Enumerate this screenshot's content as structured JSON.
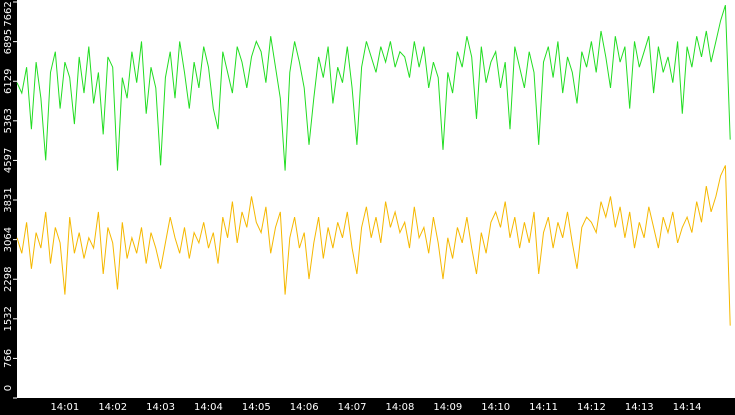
{
  "chart_data": {
    "type": "line",
    "categories": [
      null,
      null,
      null,
      null,
      null,
      null,
      null,
      null,
      null,
      null,
      "14:01",
      null,
      null,
      null,
      null,
      null,
      null,
      null,
      null,
      null,
      "14:02",
      null,
      null,
      null,
      null,
      null,
      null,
      null,
      null,
      null,
      "14:03",
      null,
      null,
      null,
      null,
      null,
      null,
      null,
      null,
      null,
      "14:04",
      null,
      null,
      null,
      null,
      null,
      null,
      null,
      null,
      null,
      "14:05",
      null,
      null,
      null,
      null,
      null,
      null,
      null,
      null,
      null,
      "14:06",
      null,
      null,
      null,
      null,
      null,
      null,
      null,
      null,
      null,
      "14:07",
      null,
      null,
      null,
      null,
      null,
      null,
      null,
      null,
      null,
      "14:08",
      null,
      null,
      null,
      null,
      null,
      null,
      null,
      null,
      null,
      "14:09",
      null,
      null,
      null,
      null,
      null,
      null,
      null,
      null,
      null,
      "14:10",
      null,
      null,
      null,
      null,
      null,
      null,
      null,
      null,
      null,
      "14:11",
      null,
      null,
      null,
      null,
      null,
      null,
      null,
      null,
      null,
      "14:12",
      null,
      null,
      null,
      null,
      null,
      null,
      null,
      null,
      null,
      "14:13",
      null,
      null,
      null,
      null,
      null,
      null,
      null,
      null,
      null,
      "14:14",
      null,
      null,
      null,
      null,
      null,
      null,
      null,
      null,
      null
    ],
    "series": [
      {
        "color": "#22dd22",
        "values": [
          6100,
          5900,
          6400,
          5200,
          6500,
          5800,
          4600,
          6300,
          6700,
          5600,
          6500,
          6200,
          5300,
          6600,
          5900,
          6800,
          5700,
          6300,
          5100,
          6600,
          6400,
          4400,
          6200,
          5800,
          6700,
          6100,
          6900,
          5500,
          6400,
          6000,
          4500,
          6200,
          6700,
          5800,
          6900,
          6300,
          5600,
          6500,
          6000,
          6800,
          6400,
          5600,
          5200,
          6700,
          6300,
          5900,
          6800,
          6500,
          6000,
          6600,
          6900,
          6700,
          6100,
          7000,
          6400,
          5800,
          4400,
          6300,
          6900,
          6500,
          6000,
          4900,
          5800,
          6600,
          6200,
          6800,
          5700,
          6400,
          6100,
          6800,
          6000,
          4900,
          6400,
          6900,
          6600,
          6300,
          6800,
          6500,
          6900,
          6400,
          6700,
          6600,
          6200,
          6900,
          6400,
          6800,
          6000,
          6500,
          6200,
          4800,
          6300,
          5900,
          6700,
          6400,
          7000,
          6600,
          5400,
          6800,
          6100,
          6500,
          6700,
          6000,
          6500,
          5200,
          6800,
          6400,
          6000,
          6700,
          6300,
          4900,
          6500,
          6800,
          6200,
          6900,
          5900,
          6600,
          6300,
          5700,
          6700,
          6400,
          6900,
          6300,
          7100,
          6600,
          6000,
          7000,
          6500,
          6800,
          5600,
          6900,
          6400,
          6700,
          7000,
          5900,
          6800,
          6300,
          6600,
          6100,
          6900,
          5500,
          6800,
          6400,
          7000,
          6600,
          7100,
          6500,
          6900,
          7300,
          7600,
          5000
        ]
      },
      {
        "color": "#f5b800",
        "values": [
          3100,
          2800,
          3400,
          2500,
          3200,
          2900,
          3600,
          2600,
          3300,
          3000,
          2000,
          3500,
          2800,
          3200,
          2700,
          3100,
          2900,
          3600,
          2400,
          3300,
          3000,
          2100,
          3400,
          2700,
          3100,
          2800,
          3300,
          2600,
          3200,
          2900,
          2500,
          3000,
          3500,
          3100,
          2800,
          3300,
          2700,
          3200,
          3000,
          3400,
          2900,
          3200,
          2600,
          3500,
          3100,
          3800,
          3000,
          3600,
          3300,
          3900,
          3400,
          3200,
          3700,
          2800,
          3300,
          3600,
          2000,
          3100,
          3500,
          2900,
          3200,
          2300,
          3000,
          3500,
          2700,
          3300,
          2900,
          3400,
          3100,
          3600,
          2900,
          2400,
          3300,
          3700,
          3100,
          3500,
          3000,
          3800,
          3300,
          3600,
          3200,
          3400,
          2900,
          3700,
          3100,
          3300,
          2800,
          3500,
          3000,
          2300,
          3100,
          2700,
          3300,
          3000,
          3500,
          2900,
          2400,
          3200,
          2800,
          3400,
          3600,
          3300,
          3800,
          3100,
          3500,
          2900,
          3400,
          3000,
          3600,
          2400,
          3200,
          3500,
          2900,
          3400,
          3100,
          3600,
          3000,
          2500,
          3300,
          3500,
          3400,
          3200,
          3800,
          3500,
          3900,
          3300,
          3700,
          3100,
          3600,
          2900,
          3400,
          3100,
          3700,
          3300,
          2900,
          3500,
          3200,
          3600,
          3000,
          3300,
          3500,
          3200,
          3800,
          3400,
          4100,
          3600,
          3900,
          4300,
          4500,
          1400
        ]
      }
    ],
    "ylim": [
      0,
      7662
    ],
    "yticks": [
      0,
      766,
      1532,
      2298,
      3064,
      3831,
      4597,
      5363,
      6129,
      6895,
      7662
    ]
  }
}
